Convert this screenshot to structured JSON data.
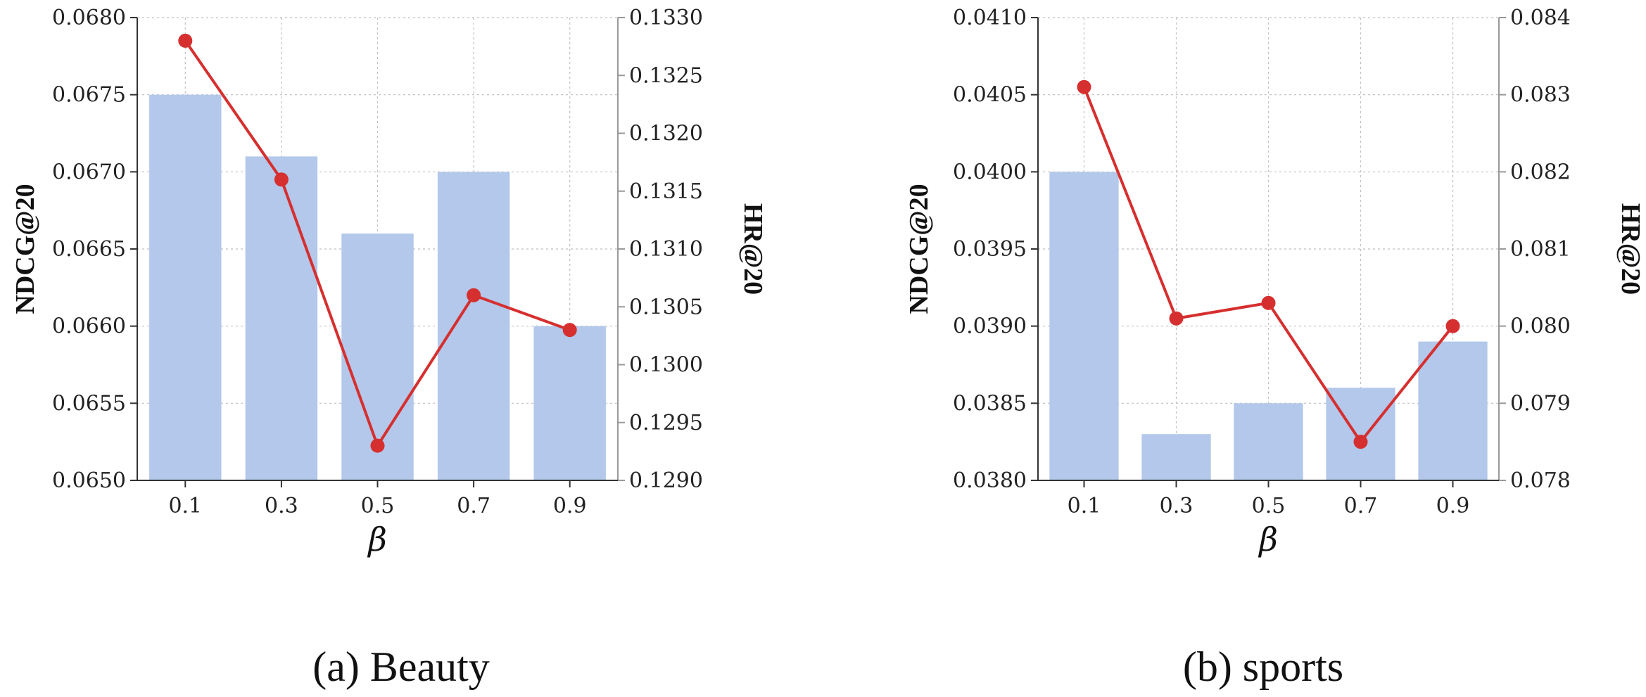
{
  "chart_data": [
    {
      "type": "bar+line",
      "caption": "(a) Beauty",
      "categories": [
        "0.1",
        "0.3",
        "0.5",
        "0.7",
        "0.9"
      ],
      "xlabel": "β",
      "ylabel": "NDCG@20",
      "ylabel_right": "HR@20",
      "ylim": [
        0.065,
        0.068
      ],
      "ylim_right": [
        0.129,
        0.133
      ],
      "yticks": [
        "0.0650",
        "0.0655",
        "0.0660",
        "0.0665",
        "0.0670",
        "0.0675",
        "0.0680"
      ],
      "yticks_right": [
        "0.1290",
        "0.1295",
        "0.1300",
        "0.1305",
        "0.1310",
        "0.1315",
        "0.1320",
        "0.1325",
        "0.1330"
      ],
      "grid": true,
      "bar_color": "#b3c8ea",
      "line_color": "#d62f2f",
      "series": [
        {
          "axis": "left",
          "kind": "bar",
          "values": [
            0.0675,
            0.0671,
            0.0666,
            0.067,
            0.066
          ]
        },
        {
          "axis": "right",
          "kind": "line",
          "values": [
            0.1328,
            0.1316,
            0.1293,
            0.1306,
            0.1303
          ]
        }
      ]
    },
    {
      "type": "bar+line",
      "caption": "(b) sports",
      "categories": [
        "0.1",
        "0.3",
        "0.5",
        "0.7",
        "0.9"
      ],
      "xlabel": "β",
      "ylabel": "NDCG@20",
      "ylabel_right": "HR@20",
      "ylim": [
        0.038,
        0.041
      ],
      "ylim_right": [
        0.078,
        0.084
      ],
      "yticks": [
        "0.0380",
        "0.0385",
        "0.0390",
        "0.0395",
        "0.0400",
        "0.0405",
        "0.0410"
      ],
      "yticks_right": [
        "0.078",
        "0.079",
        "0.080",
        "0.081",
        "0.082",
        "0.083",
        "0.084"
      ],
      "grid": true,
      "bar_color": "#b3c8ea",
      "line_color": "#d62f2f",
      "series": [
        {
          "axis": "left",
          "kind": "bar",
          "values": [
            0.04,
            0.0383,
            0.0385,
            0.0386,
            0.0389
          ]
        },
        {
          "axis": "right",
          "kind": "line",
          "values": [
            0.0831,
            0.0801,
            0.0803,
            0.0785,
            0.08
          ]
        }
      ]
    }
  ]
}
